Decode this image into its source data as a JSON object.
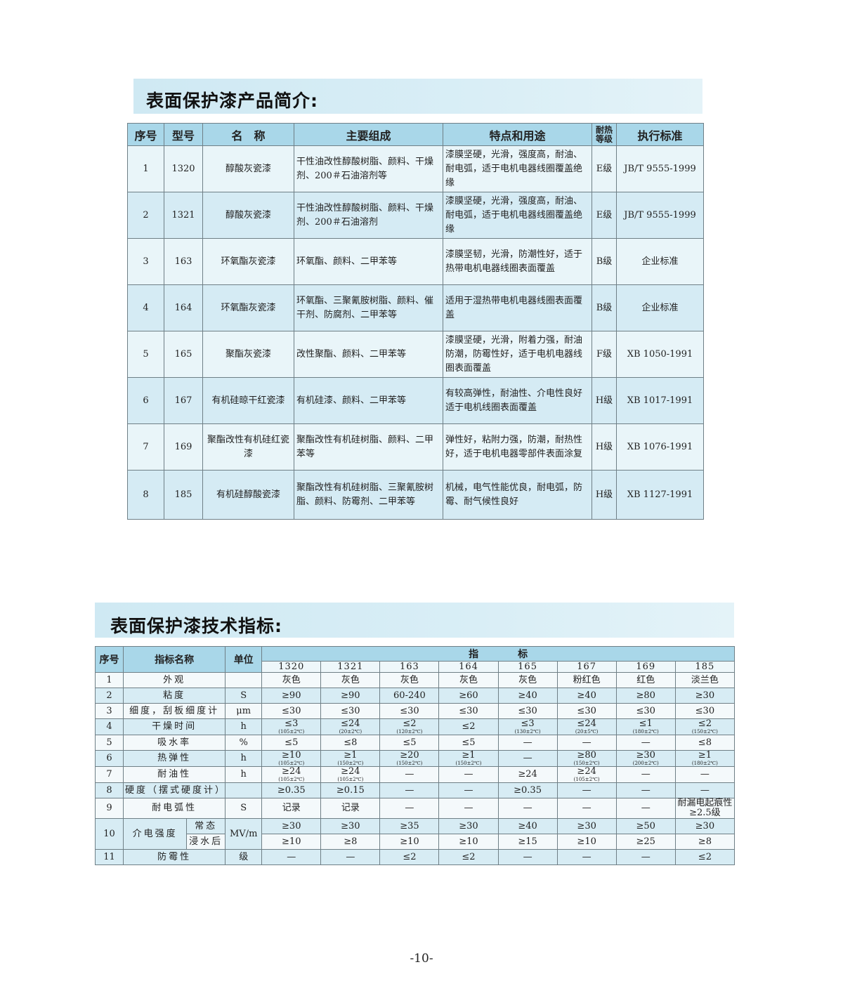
{
  "section1": {
    "title": "表面保护漆产品简介:",
    "headers": [
      "序号",
      "型号",
      "名　称",
      "主要组成",
      "特点和用途",
      "耐热等级",
      "执行标准"
    ],
    "rows": [
      [
        "1",
        "1320",
        "醇酸灰瓷漆",
        "干性油改性醇酸树脂、颜料、干燥剂、200＃石油溶剂等",
        "漆膜坚硬，光滑，强度高，耐油、耐电弧，适于电机电器线圈覆盖绝缘",
        "E级",
        "JB/T 9555-1999"
      ],
      [
        "2",
        "1321",
        "醇酸灰瓷漆",
        "干性油改性醇酸树脂、颜料、干燥剂、200＃石油溶剂",
        "漆膜坚硬，光滑，强度高，耐油、耐电弧，适于电机电器线圈覆盖绝缘",
        "E级",
        "JB/T 9555-1999"
      ],
      [
        "3",
        "163",
        "环氧酯灰瓷漆",
        "环氧酯、颜料、二甲苯等",
        "漆膜坚韧，光滑，防潮性好，适于热带电机电器线圈表面覆盖",
        "B级",
        "企业标准"
      ],
      [
        "4",
        "164",
        "环氧酯灰瓷漆",
        "环氧酯、三聚氰胺树脂、颜料、催干剂、防腐剂、二甲苯等",
        "适用于湿热带电机电器线圈表面覆盖",
        "B级",
        "企业标准"
      ],
      [
        "5",
        "165",
        "聚酯灰瓷漆",
        "改性聚酯、颜料、二甲苯等",
        "漆膜坚硬，光滑，附着力强，耐油防潮，防霉性好，适于电机电器线圈表面覆盖",
        "F级",
        "XB 1050-1991"
      ],
      [
        "6",
        "167",
        "有机硅晾干红瓷漆",
        "有机硅漆、颜料、二甲苯等",
        "有较高弹性，耐油性、介电性良好适于电机线圈表面覆盖",
        "H级",
        "XB 1017-1991"
      ],
      [
        "7",
        "169",
        "聚酯改性有机硅红瓷漆",
        "聚酯改性有机硅树脂、颜料、二甲苯等",
        "弹性好，粘附力强，防潮，耐热性好，适于电机电器零部件表面涂复",
        "H级",
        "XB 1076-1991"
      ],
      [
        "8",
        "185",
        "有机硅醇酸瓷漆",
        "聚酯改性有机硅树脂、三聚氰胺树脂、颜料、防霉剂、二甲苯等",
        "机械，电气性能优良，耐电弧，防霉、耐气候性良好",
        "H级",
        "XB 1127-1991"
      ]
    ]
  },
  "section2": {
    "title": "表面保护漆技术指标:",
    "headers": {
      "no": "序号",
      "name": "指标名称",
      "unit": "单位",
      "group": "指　　　　标"
    },
    "codes": [
      "1320",
      "1321",
      "163",
      "164",
      "165",
      "167",
      "169",
      "185"
    ],
    "rows": [
      {
        "no": "1",
        "name": "外观",
        "unit": "",
        "values": [
          "灰色",
          "灰色",
          "灰色",
          "灰色",
          "灰色",
          "粉红色",
          "红色",
          "淡兰色"
        ]
      },
      {
        "no": "2",
        "name": "粘度",
        "unit": "S",
        "values": [
          "≥90",
          "≥90",
          "60-240",
          "≥60",
          "≥40",
          "≥40",
          "≥80",
          "≥30"
        ]
      },
      {
        "no": "3",
        "name": "细度，刮板细度计",
        "unit": "μm",
        "values": [
          "≤30",
          "≤30",
          "≤30",
          "≤30",
          "≤30",
          "≤30",
          "≤30",
          "≤30"
        ]
      },
      {
        "no": "4",
        "name": "干燥时间",
        "unit": "h",
        "values": [
          [
            "≤3",
            "(105±2℃)"
          ],
          [
            "≤24",
            "(20±2℃)"
          ],
          [
            "≤2",
            "(120±2℃)"
          ],
          "≤2",
          [
            "≤3",
            "(130±2℃)"
          ],
          [
            "≤24",
            "(20±5℃)"
          ],
          [
            "≤1",
            "(180±2℃)"
          ],
          [
            "≤2",
            "(150±2℃)"
          ]
        ]
      },
      {
        "no": "5",
        "name": "吸水率",
        "unit": "%",
        "values": [
          "≤5",
          "≤8",
          "≤5",
          "≤5",
          "—",
          "—",
          "—",
          "≤8"
        ]
      },
      {
        "no": "6",
        "name": "热弹性",
        "unit": "h",
        "values": [
          [
            "≥10",
            "(105±2℃)"
          ],
          [
            "≥1",
            "(150±2℃)"
          ],
          [
            "≥20",
            "(150±2℃)"
          ],
          [
            "≥1",
            "(150±2℃)"
          ],
          "—",
          [
            "≥80",
            "(150±2℃)"
          ],
          [
            "≥30",
            "(200±2℃)"
          ],
          [
            "≥1",
            "(180±2℃)"
          ]
        ]
      },
      {
        "no": "7",
        "name": "耐油性",
        "unit": "h",
        "values": [
          [
            "≥24",
            "(105±2℃)"
          ],
          [
            "≥24",
            "(105±2℃)"
          ],
          "—",
          "—",
          "≥24",
          [
            "≥24",
            "(105±2℃)"
          ],
          "—",
          "—"
        ]
      },
      {
        "no": "8",
        "name": "硬度（摆式硬度计）",
        "unit": "",
        "values": [
          "≥0.35",
          "≥0.15",
          "—",
          "—",
          "≥0.35",
          "—",
          "—",
          "—"
        ]
      },
      {
        "no": "9",
        "name": "耐电弧性",
        "unit": "S",
        "values": [
          "记录",
          "记录",
          "—",
          "—",
          "—",
          "—",
          "—",
          "耐漏电起痕性 ≥2.5级"
        ]
      }
    ],
    "dielectric": {
      "no": "10",
      "name": "介电强度",
      "unit": "MV/m",
      "sub": [
        {
          "label": "常态",
          "values": [
            "≥30",
            "≥30",
            "≥35",
            "≥30",
            "≥40",
            "≥30",
            "≥50",
            "≥30"
          ]
        },
        {
          "label": "浸水后",
          "values": [
            "≥10",
            "≥8",
            "≥10",
            "≥10",
            "≥15",
            "≥10",
            "≥25",
            "≥8"
          ]
        }
      ]
    },
    "last": {
      "no": "11",
      "name": "防霉性",
      "unit": "级",
      "values": [
        "—",
        "—",
        "≤2",
        "≤2",
        "—",
        "—",
        "—",
        "≤2"
      ]
    }
  },
  "page_number": "-10-"
}
